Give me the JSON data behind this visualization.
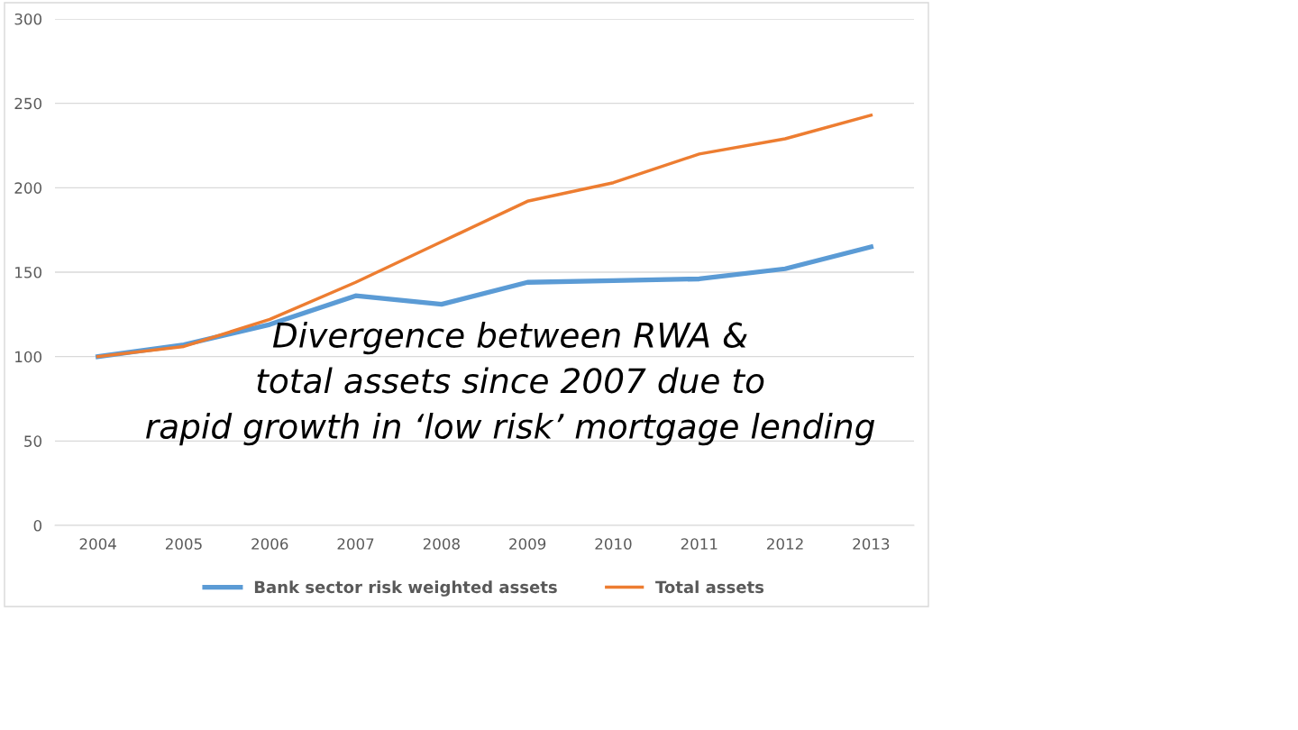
{
  "chart_data": {
    "type": "line",
    "categories": [
      "2004",
      "2005",
      "2006",
      "2007",
      "2008",
      "2009",
      "2010",
      "2011",
      "2012",
      "2013"
    ],
    "series": [
      {
        "name": "Bank sector risk weighted assets",
        "color": "#5b9bd5",
        "values": [
          100,
          107,
          119,
          136,
          131,
          144,
          145,
          146,
          152,
          165
        ]
      },
      {
        "name": "Total assets",
        "color": "#ed7d31",
        "values": [
          100,
          106,
          122,
          144,
          168,
          192,
          203,
          220,
          229,
          243
        ]
      }
    ],
    "ylim": [
      0,
      300
    ],
    "yticks": [
      0,
      50,
      100,
      150,
      200,
      250,
      300
    ],
    "grid": "y",
    "legend": "bottom",
    "marker": "none",
    "line_style": "solid",
    "annotations": [
      "Divergence between RWA &\ntotal assets since 2007 due to\nrapid growth in ‘low risk’ mortgage lending"
    ]
  }
}
